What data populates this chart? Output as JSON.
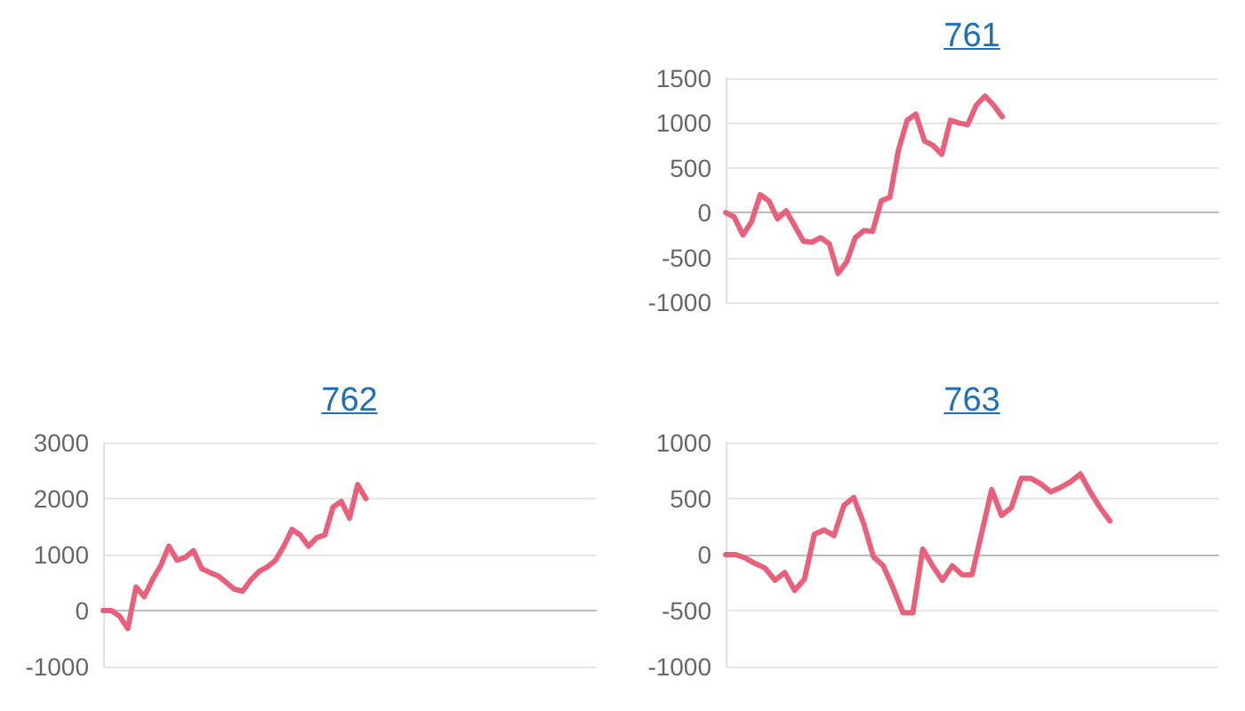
{
  "chart_data": [
    {
      "type": "line",
      "title": "761",
      "categories": [
        null,
        null,
        null,
        null,
        null,
        null,
        null,
        null,
        null,
        null,
        null,
        null,
        null,
        null,
        null,
        null,
        null,
        null,
        null,
        null,
        null,
        null,
        null,
        null,
        null,
        null,
        null,
        null,
        null,
        null,
        null,
        null,
        null,
        null,
        null,
        null,
        null,
        null,
        null,
        null,
        null,
        null,
        null,
        null,
        null,
        null,
        null,
        null,
        null,
        null,
        null,
        null,
        null,
        null,
        null,
        null,
        null,
        null
      ],
      "series": [
        {
          "color": "#e8607a",
          "values": [
            0,
            -50,
            -250,
            -100,
            200,
            130,
            -70,
            20,
            -150,
            -320,
            -330,
            -280,
            -350,
            -680,
            -550,
            -280,
            -200,
            -210,
            130,
            170,
            700,
            1030,
            1100,
            800,
            750,
            650,
            1030,
            1000,
            980,
            1200,
            1300,
            1200,
            1070,
            null,
            null,
            null,
            null,
            null,
            null,
            null,
            null,
            null,
            null,
            null,
            null,
            null,
            null,
            null,
            null,
            null,
            null,
            null,
            null,
            null,
            null,
            null,
            null,
            null
          ]
        }
      ],
      "ylim": [
        -1000,
        1500
      ],
      "yticks": [
        -1000,
        -500,
        0,
        500,
        1000,
        1500
      ],
      "grid": "y",
      "marker": "none",
      "line_style": "solid"
    },
    {
      "type": "line",
      "title": "762",
      "categories": [
        null,
        null,
        null,
        null,
        null,
        null,
        null,
        null,
        null,
        null,
        null,
        null,
        null,
        null,
        null,
        null,
        null,
        null,
        null,
        null,
        null,
        null,
        null,
        null,
        null,
        null,
        null,
        null,
        null,
        null,
        null,
        null,
        null,
        null,
        null,
        null,
        null,
        null,
        null,
        null,
        null,
        null,
        null,
        null,
        null,
        null,
        null,
        null,
        null,
        null,
        null,
        null,
        null,
        null,
        null,
        null,
        null,
        null,
        null,
        null,
        null
      ],
      "series": [
        {
          "color": "#e8607a",
          "values": [
            0,
            0,
            -100,
            -320,
            420,
            250,
            550,
            800,
            1150,
            900,
            950,
            1070,
            750,
            680,
            620,
            500,
            380,
            350,
            550,
            700,
            780,
            900,
            1150,
            1450,
            1350,
            1150,
            1300,
            1350,
            1850,
            1950,
            1650,
            2250,
            2000,
            null,
            null,
            null,
            null,
            null,
            null,
            null,
            null,
            null,
            null,
            null,
            null,
            null,
            null,
            null,
            null,
            null,
            null,
            null,
            null,
            null,
            null,
            null,
            null,
            null,
            null,
            null,
            null
          ]
        }
      ],
      "ylim": [
        -1000,
        3000
      ],
      "yticks": [
        -1000,
        0,
        1000,
        2000,
        3000
      ],
      "grid": "y",
      "marker": "none",
      "line_style": "solid"
    },
    {
      "type": "line",
      "title": "763",
      "categories": [
        null,
        null,
        null,
        null,
        null,
        null,
        null,
        null,
        null,
        null,
        null,
        null,
        null,
        null,
        null,
        null,
        null,
        null,
        null,
        null,
        null,
        null,
        null,
        null,
        null,
        null,
        null,
        null,
        null,
        null,
        null,
        null,
        null,
        null,
        null,
        null,
        null,
        null,
        null,
        null,
        null,
        null,
        null,
        null,
        null,
        null,
        null,
        null,
        null,
        null,
        null
      ],
      "series": [
        {
          "color": "#e8607a",
          "values": [
            0,
            0,
            -30,
            -80,
            -120,
            -230,
            -160,
            -320,
            -220,
            180,
            220,
            170,
            440,
            510,
            280,
            -20,
            -100,
            -300,
            -520,
            -520,
            50,
            -100,
            -230,
            -100,
            -180,
            -180,
            200,
            580,
            350,
            420,
            680,
            680,
            630,
            560,
            600,
            650,
            720,
            560,
            420,
            300,
            null,
            null,
            null,
            null,
            null,
            null,
            null,
            null,
            null,
            null,
            null
          ]
        }
      ],
      "ylim": [
        -1000,
        1000
      ],
      "yticks": [
        -1000,
        -500,
        0,
        500,
        1000
      ],
      "grid": "y",
      "marker": "none",
      "line_style": "solid"
    }
  ]
}
